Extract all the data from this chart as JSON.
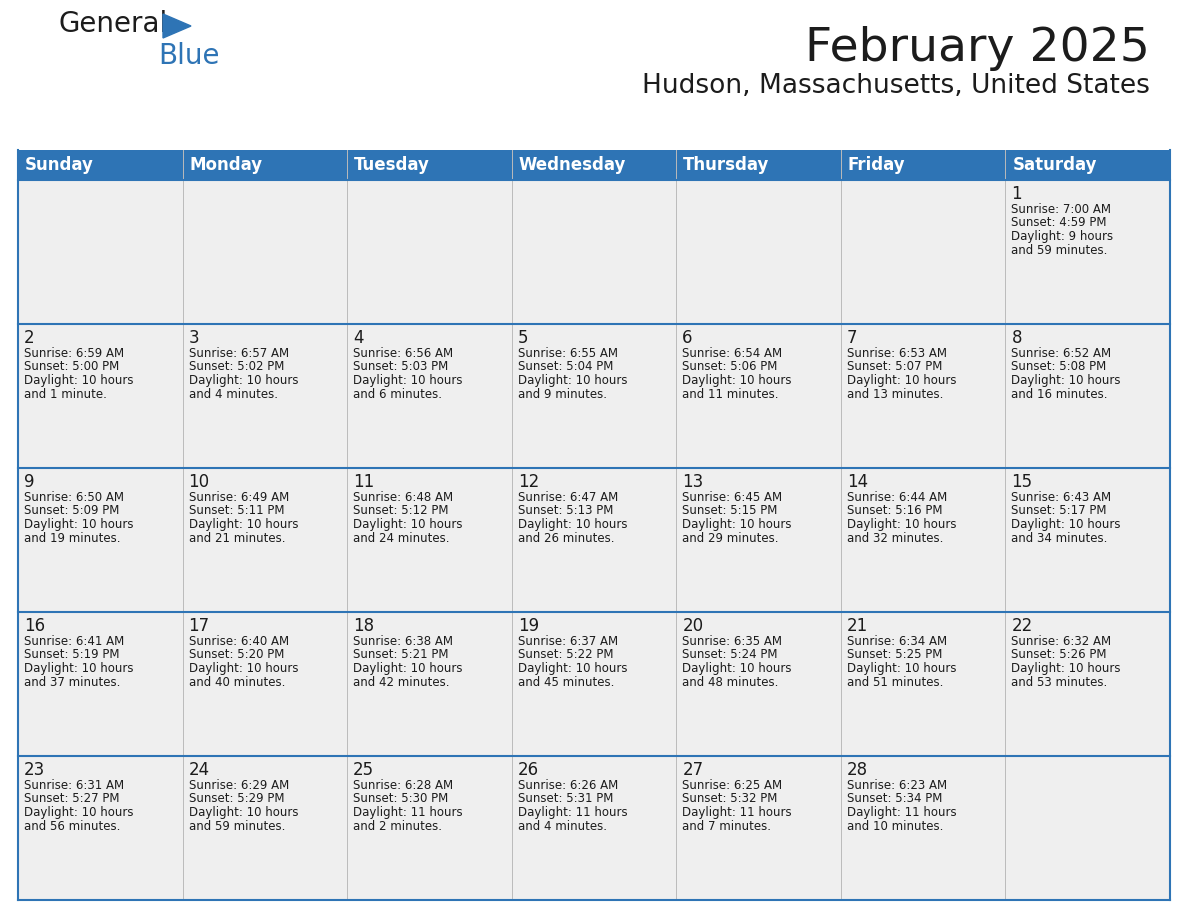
{
  "title": "February 2025",
  "subtitle": "Hudson, Massachusetts, United States",
  "header_color": "#2E74B5",
  "header_text_color": "#FFFFFF",
  "grid_line_color": "#2E74B5",
  "day_names": [
    "Sunday",
    "Monday",
    "Tuesday",
    "Wednesday",
    "Thursday",
    "Friday",
    "Saturday"
  ],
  "background_color": "#FFFFFF",
  "cell_bg": "#F0F0F0",
  "days": [
    {
      "day": 1,
      "col": 6,
      "row": 0,
      "sunrise": "7:00 AM",
      "sunset": "4:59 PM",
      "daylight": "9 hours and 59 minutes."
    },
    {
      "day": 2,
      "col": 0,
      "row": 1,
      "sunrise": "6:59 AM",
      "sunset": "5:00 PM",
      "daylight": "10 hours and 1 minute."
    },
    {
      "day": 3,
      "col": 1,
      "row": 1,
      "sunrise": "6:57 AM",
      "sunset": "5:02 PM",
      "daylight": "10 hours and 4 minutes."
    },
    {
      "day": 4,
      "col": 2,
      "row": 1,
      "sunrise": "6:56 AM",
      "sunset": "5:03 PM",
      "daylight": "10 hours and 6 minutes."
    },
    {
      "day": 5,
      "col": 3,
      "row": 1,
      "sunrise": "6:55 AM",
      "sunset": "5:04 PM",
      "daylight": "10 hours and 9 minutes."
    },
    {
      "day": 6,
      "col": 4,
      "row": 1,
      "sunrise": "6:54 AM",
      "sunset": "5:06 PM",
      "daylight": "10 hours and 11 minutes."
    },
    {
      "day": 7,
      "col": 5,
      "row": 1,
      "sunrise": "6:53 AM",
      "sunset": "5:07 PM",
      "daylight": "10 hours and 13 minutes."
    },
    {
      "day": 8,
      "col": 6,
      "row": 1,
      "sunrise": "6:52 AM",
      "sunset": "5:08 PM",
      "daylight": "10 hours and 16 minutes."
    },
    {
      "day": 9,
      "col": 0,
      "row": 2,
      "sunrise": "6:50 AM",
      "sunset": "5:09 PM",
      "daylight": "10 hours and 19 minutes."
    },
    {
      "day": 10,
      "col": 1,
      "row": 2,
      "sunrise": "6:49 AM",
      "sunset": "5:11 PM",
      "daylight": "10 hours and 21 minutes."
    },
    {
      "day": 11,
      "col": 2,
      "row": 2,
      "sunrise": "6:48 AM",
      "sunset": "5:12 PM",
      "daylight": "10 hours and 24 minutes."
    },
    {
      "day": 12,
      "col": 3,
      "row": 2,
      "sunrise": "6:47 AM",
      "sunset": "5:13 PM",
      "daylight": "10 hours and 26 minutes."
    },
    {
      "day": 13,
      "col": 4,
      "row": 2,
      "sunrise": "6:45 AM",
      "sunset": "5:15 PM",
      "daylight": "10 hours and 29 minutes."
    },
    {
      "day": 14,
      "col": 5,
      "row": 2,
      "sunrise": "6:44 AM",
      "sunset": "5:16 PM",
      "daylight": "10 hours and 32 minutes."
    },
    {
      "day": 15,
      "col": 6,
      "row": 2,
      "sunrise": "6:43 AM",
      "sunset": "5:17 PM",
      "daylight": "10 hours and 34 minutes."
    },
    {
      "day": 16,
      "col": 0,
      "row": 3,
      "sunrise": "6:41 AM",
      "sunset": "5:19 PM",
      "daylight": "10 hours and 37 minutes."
    },
    {
      "day": 17,
      "col": 1,
      "row": 3,
      "sunrise": "6:40 AM",
      "sunset": "5:20 PM",
      "daylight": "10 hours and 40 minutes."
    },
    {
      "day": 18,
      "col": 2,
      "row": 3,
      "sunrise": "6:38 AM",
      "sunset": "5:21 PM",
      "daylight": "10 hours and 42 minutes."
    },
    {
      "day": 19,
      "col": 3,
      "row": 3,
      "sunrise": "6:37 AM",
      "sunset": "5:22 PM",
      "daylight": "10 hours and 45 minutes."
    },
    {
      "day": 20,
      "col": 4,
      "row": 3,
      "sunrise": "6:35 AM",
      "sunset": "5:24 PM",
      "daylight": "10 hours and 48 minutes."
    },
    {
      "day": 21,
      "col": 5,
      "row": 3,
      "sunrise": "6:34 AM",
      "sunset": "5:25 PM",
      "daylight": "10 hours and 51 minutes."
    },
    {
      "day": 22,
      "col": 6,
      "row": 3,
      "sunrise": "6:32 AM",
      "sunset": "5:26 PM",
      "daylight": "10 hours and 53 minutes."
    },
    {
      "day": 23,
      "col": 0,
      "row": 4,
      "sunrise": "6:31 AM",
      "sunset": "5:27 PM",
      "daylight": "10 hours and 56 minutes."
    },
    {
      "day": 24,
      "col": 1,
      "row": 4,
      "sunrise": "6:29 AM",
      "sunset": "5:29 PM",
      "daylight": "10 hours and 59 minutes."
    },
    {
      "day": 25,
      "col": 2,
      "row": 4,
      "sunrise": "6:28 AM",
      "sunset": "5:30 PM",
      "daylight": "11 hours and 2 minutes."
    },
    {
      "day": 26,
      "col": 3,
      "row": 4,
      "sunrise": "6:26 AM",
      "sunset": "5:31 PM",
      "daylight": "11 hours and 4 minutes."
    },
    {
      "day": 27,
      "col": 4,
      "row": 4,
      "sunrise": "6:25 AM",
      "sunset": "5:32 PM",
      "daylight": "11 hours and 7 minutes."
    },
    {
      "day": 28,
      "col": 5,
      "row": 4,
      "sunrise": "6:23 AM",
      "sunset": "5:34 PM",
      "daylight": "11 hours and 10 minutes."
    }
  ],
  "logo_text1": "General",
  "logo_text2": "Blue",
  "num_rows": 5,
  "num_cols": 7,
  "text_fontsize": 8.5,
  "day_num_fontsize": 12,
  "header_fontsize": 12,
  "title_fontsize": 34,
  "subtitle_fontsize": 19
}
